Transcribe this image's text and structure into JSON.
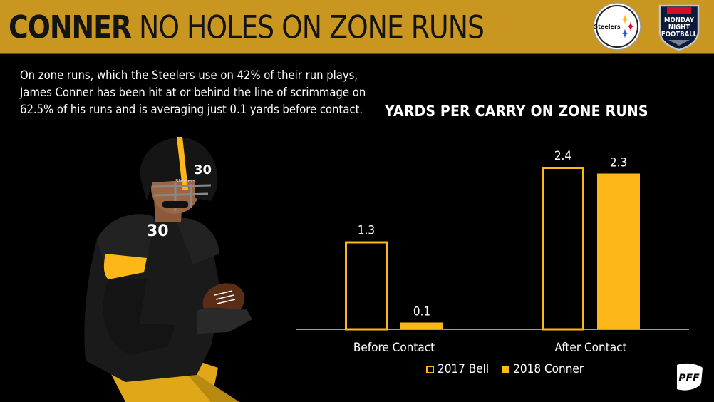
{
  "header": {
    "title_strong": "CONNER",
    "title_rest": "NO HOLES ON ZONE RUNS",
    "steelers_logo_text": "Steelers",
    "mnf_logo_lines": [
      "MONDAY",
      "NIGHT",
      "FOOTBALL"
    ]
  },
  "blurb": {
    "lines": [
      "On zone runs, which the Steelers use on 42% of their run plays,",
      "James Conner has been hit at or behind the line of scrimmage on",
      "62.5% of his runs and is averaging just 0.1 yards before contact."
    ]
  },
  "chart_data": {
    "type": "bar",
    "title": "YARDS PER CARRY ON ZONE RUNS",
    "categories": [
      "Before Contact",
      "After Contact"
    ],
    "series": [
      {
        "name": "2017 Bell",
        "values": [
          1.3,
          2.4
        ],
        "style": "outline"
      },
      {
        "name": "2018 Conner",
        "values": [
          0.1,
          2.3
        ],
        "style": "filled"
      }
    ],
    "value_labels": [
      [
        "1.3",
        "2.4"
      ],
      [
        "0.1",
        "2.3"
      ]
    ],
    "ylim": [
      0,
      2.6
    ],
    "grid": false,
    "legend": "bottom"
  },
  "colors": {
    "header_gold": "#c9961f",
    "bar_gold": "#fdb719",
    "background": "#000000",
    "title_text": "#141414"
  },
  "player": {
    "jersey_number": "30",
    "helmet_text": "Steelers"
  },
  "pff_logo_text": "PFF"
}
